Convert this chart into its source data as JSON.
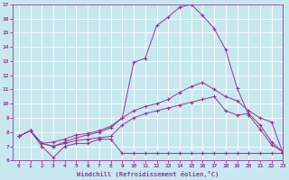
{
  "bg_color": "#c8e8f0",
  "line_color": "#993399",
  "xlim": [
    -0.5,
    23
  ],
  "ylim": [
    6,
    17
  ],
  "yticks": [
    6,
    7,
    8,
    9,
    10,
    11,
    12,
    13,
    14,
    15,
    16,
    17
  ],
  "xticks": [
    0,
    1,
    2,
    3,
    4,
    5,
    6,
    7,
    8,
    9,
    10,
    11,
    12,
    13,
    14,
    15,
    16,
    17,
    18,
    19,
    20,
    21,
    22,
    23
  ],
  "xlabel": "Windchill (Refroidissement éolien,°C)",
  "line1_x": [
    0,
    1,
    2,
    3,
    4,
    5,
    6,
    7,
    8,
    9,
    10,
    11,
    12,
    13,
    14,
    15,
    16,
    17,
    18,
    19,
    20,
    21,
    22,
    23
  ],
  "line1_y": [
    7.7,
    8.1,
    7.0,
    6.2,
    7.0,
    7.2,
    7.2,
    7.5,
    7.5,
    6.5,
    6.5,
    6.5,
    6.5,
    6.5,
    6.5,
    6.5,
    6.5,
    6.5,
    6.5,
    6.5,
    6.5,
    6.5,
    6.5,
    6.5
  ],
  "line2_x": [
    0,
    1,
    2,
    3,
    4,
    5,
    6,
    7,
    8,
    9,
    10,
    11,
    12,
    13,
    14,
    15,
    16,
    17,
    18,
    19,
    20,
    21,
    22,
    23
  ],
  "line2_y": [
    7.7,
    8.1,
    7.2,
    7.0,
    7.2,
    7.4,
    7.5,
    7.6,
    7.7,
    8.5,
    9.0,
    9.3,
    9.5,
    9.7,
    9.9,
    10.1,
    10.3,
    10.5,
    9.5,
    9.2,
    9.3,
    8.5,
    7.3,
    6.6
  ],
  "line3_x": [
    0,
    1,
    2,
    3,
    4,
    5,
    6,
    7,
    8,
    9,
    10,
    11,
    12,
    13,
    14,
    15,
    16,
    17,
    18,
    19,
    20,
    21,
    22,
    23
  ],
  "line3_y": [
    7.7,
    8.1,
    7.2,
    7.0,
    7.3,
    7.6,
    7.8,
    8.0,
    8.3,
    9.0,
    12.9,
    13.2,
    15.5,
    16.1,
    16.8,
    17.0,
    16.2,
    15.3,
    13.8,
    11.1,
    9.2,
    8.2,
    7.1,
    6.6
  ],
  "line4_x": [
    0,
    1,
    2,
    3,
    4,
    5,
    6,
    7,
    8,
    9,
    10,
    11,
    12,
    13,
    14,
    15,
    16,
    17,
    18,
    19,
    20,
    21,
    22,
    23
  ],
  "line4_y": [
    7.7,
    8.1,
    7.2,
    7.3,
    7.5,
    7.8,
    7.9,
    8.1,
    8.4,
    9.0,
    9.5,
    9.8,
    10.0,
    10.3,
    10.8,
    11.2,
    11.5,
    11.0,
    10.5,
    10.2,
    9.5,
    9.0,
    8.7,
    6.5
  ]
}
